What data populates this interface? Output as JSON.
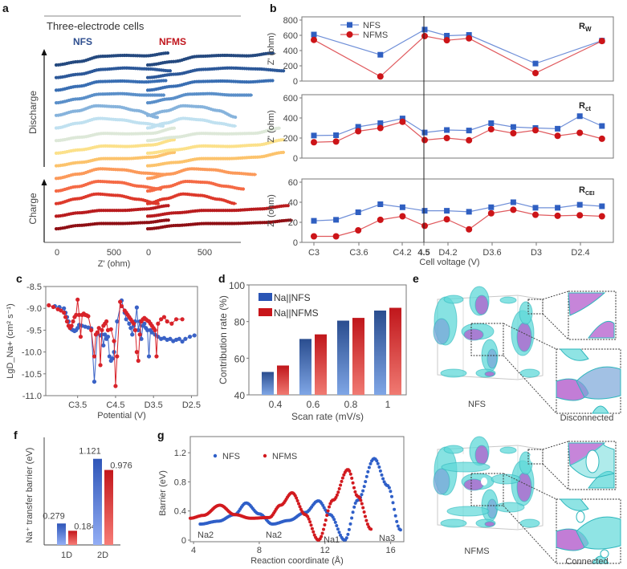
{
  "panels": {
    "a": {
      "letter": "a",
      "title": "Three-electrode cells",
      "series_labels": [
        "NFS",
        "NFMS"
      ],
      "series_colors": [
        "#2e4e8f",
        "#c0151c"
      ],
      "side_labels": [
        "Discharge",
        "Charge"
      ],
      "x_ticks": [
        "0",
        "500",
        "0",
        "500"
      ],
      "xlabel": "Z' (ohm)",
      "curve_colors": [
        "#24497f",
        "#2d5899",
        "#3a6fb3",
        "#5b8fc9",
        "#86b3dc",
        "#bfe0f0",
        "#dde8d8",
        "#fbe08a",
        "#fcc36c",
        "#fb9a5a",
        "#f46a45",
        "#dd3a2c",
        "#b81c1f",
        "#8f0f14"
      ]
    },
    "b": {
      "letter": "b",
      "legend": [
        "NFS",
        "NFMS"
      ],
      "colors": {
        "NFS": "#2f5fc1",
        "NFMS": "#cc1418"
      },
      "ylabel": "Z' (ohm)",
      "xlabel": "Cell voltage  (V)",
      "x_ticks": [
        "C3",
        "C3.6",
        "C4.2",
        "4.5",
        "D4.2",
        "D3.6",
        "D3",
        "D2.4"
      ],
      "highlight_tick": "4.5",
      "highlight_color": "#e8141a"
    },
    "c": {
      "letter": "c"
    },
    "d": {
      "letter": "d"
    },
    "e": {
      "letter": "e",
      "structures": [
        {
          "name": "NFS",
          "caption": "Disconnected"
        },
        {
          "name": "NFMS",
          "caption": "Connected"
        }
      ]
    },
    "f": {
      "letter": "f"
    },
    "g": {
      "letter": "g"
    }
  },
  "chart_data": [
    {
      "id": "b-rw",
      "type": "line",
      "title": "R_W",
      "ylabel": "Z' (ohm)",
      "ylim": [
        0,
        800
      ],
      "yticks": [
        "0",
        "200",
        "400",
        "600",
        "800"
      ],
      "x_index": [
        0,
        3,
        5,
        6,
        7,
        10,
        13
      ],
      "series": [
        {
          "name": "NFS",
          "values": [
            610,
            345,
            675,
            595,
            605,
            230,
            530
          ]
        },
        {
          "name": "NFMS",
          "values": [
            540,
            60,
            590,
            535,
            560,
            105,
            525
          ]
        }
      ]
    },
    {
      "id": "b-rct",
      "type": "line",
      "title": "R_ct",
      "ylabel": "Z' (ohm)",
      "ylim": [
        0,
        600
      ],
      "yticks": [
        "0",
        "200",
        "400",
        "600"
      ],
      "x_index": [
        0,
        1,
        2,
        3,
        4,
        5,
        6,
        7,
        8,
        9,
        10,
        11,
        12,
        13
      ],
      "series": [
        {
          "name": "NFS",
          "values": [
            225,
            228,
            312,
            348,
            395,
            255,
            280,
            275,
            348,
            310,
            300,
            293,
            418,
            320
          ]
        },
        {
          "name": "NFMS",
          "values": [
            158,
            165,
            268,
            300,
            362,
            180,
            200,
            178,
            288,
            248,
            278,
            222,
            252,
            193
          ]
        }
      ]
    },
    {
      "id": "b-rcei",
      "type": "line",
      "title": "R_CEI",
      "ylabel": "Z' (ohm)",
      "xlabel": "Cell voltage  (V)",
      "ylim": [
        0,
        60
      ],
      "yticks": [
        "0",
        "20",
        "40",
        "60"
      ],
      "categories": [
        "C3",
        "C3.6",
        "C4.2",
        "4.5",
        "D4.2",
        "D3.6",
        "D3",
        "D2.4"
      ],
      "x_index": [
        0,
        1,
        2,
        3,
        4,
        5,
        6,
        7,
        8,
        9,
        10,
        11,
        12,
        13
      ],
      "series": [
        {
          "name": "NFS",
          "values": [
            21.5,
            22.5,
            30,
            38,
            35,
            31.5,
            31.5,
            30.5,
            35,
            40,
            34.5,
            34.5,
            37.5,
            36
          ]
        },
        {
          "name": "NFMS",
          "values": [
            6,
            6,
            12,
            22.5,
            26,
            16.5,
            23,
            13,
            29,
            32.5,
            27.5,
            26.5,
            27,
            26
          ]
        }
      ]
    },
    {
      "id": "c",
      "type": "line",
      "ylabel": "LgD_Na+ (cm² s⁻¹)",
      "xlabel": "Potential  (V)",
      "ylim": [
        -11.0,
        -8.5
      ],
      "yticks": [
        "-8.5",
        "-9.0",
        "-9.5",
        "-10.0",
        "-10.5",
        "-11.0"
      ],
      "xticks": [
        "C3.5",
        "C4.5",
        "D3.5",
        "D2.5"
      ],
      "x_range": [
        0,
        100
      ],
      "xtick_pos": [
        21,
        46,
        71,
        96
      ],
      "series": [
        {
          "name": "NFS",
          "x": [
            6,
            9,
            12,
            13,
            14,
            15,
            16,
            17,
            18,
            19,
            20,
            21,
            22,
            24,
            26,
            28,
            30,
            32,
            34,
            36,
            37,
            38,
            39,
            40,
            41,
            42,
            43,
            44,
            45,
            47,
            50,
            52,
            53,
            55,
            56,
            57,
            58,
            59,
            60,
            61,
            62,
            63,
            64,
            65,
            66,
            67,
            68,
            69,
            70,
            72,
            74,
            76,
            78,
            80,
            82,
            84,
            86,
            88,
            90,
            92,
            95,
            98
          ],
          "y": [
            -8.95,
            -8.97,
            -9.0,
            -9.1,
            -9.2,
            -9.3,
            -9.45,
            -9.48,
            -9.5,
            -9.52,
            -9.5,
            -9.45,
            -9.38,
            -9.4,
            -9.42,
            -9.44,
            -9.46,
            -10.68,
            -9.58,
            -9.62,
            -9.6,
            -9.85,
            -9.6,
            -9.7,
            -9.65,
            -10.1,
            -10.2,
            -10.15,
            -10.0,
            -9.3,
            -8.82,
            -9.1,
            -9.25,
            -9.35,
            -9.45,
            -9.6,
            -9.4,
            -9.3,
            -8.98,
            -9.5,
            -9.3,
            -9.7,
            -9.4,
            -9.35,
            -9.45,
            -9.5,
            -10.1,
            -9.5,
            -9.55,
            -9.6,
            -9.65,
            -9.7,
            -9.68,
            -9.72,
            -9.7,
            -9.75,
            -9.72,
            -9.7,
            -9.76,
            -9.7,
            -9.65,
            -9.62
          ]
        },
        {
          "name": "NFMS",
          "x": [
            2,
            5,
            8,
            10,
            12,
            13,
            14,
            15,
            16,
            17,
            18,
            19,
            20,
            21,
            22,
            23,
            24,
            25,
            26,
            27,
            28,
            30,
            32,
            33,
            34,
            35,
            36,
            37,
            38,
            39,
            40,
            41,
            43,
            45,
            46,
            47,
            49,
            50,
            52,
            53,
            54,
            55,
            56,
            57,
            58,
            59,
            60,
            61,
            62,
            63,
            64,
            65,
            66,
            67,
            68,
            69,
            70,
            71,
            72,
            73,
            74,
            76,
            78,
            80,
            83,
            86,
            90
          ],
          "y": [
            -8.93,
            -8.97,
            -9.02,
            -9.05,
            -9.1,
            -9.2,
            -9.3,
            -9.4,
            -9.45,
            -9.4,
            -9.3,
            -9.2,
            -9.15,
            -8.8,
            -9.15,
            -9.65,
            -9.15,
            -9.12,
            -9.15,
            -9.16,
            -9.18,
            -9.5,
            -10.1,
            -9.6,
            -9.55,
            -9.45,
            -10.3,
            -9.5,
            -9.4,
            -9.35,
            -9.3,
            -9.5,
            -9.48,
            -9.75,
            -10.78,
            -10.1,
            -8.85,
            -8.95,
            -9.05,
            -9.1,
            -9.15,
            -9.2,
            -9.25,
            -9.3,
            -9.35,
            -9.5,
            -10.0,
            -10.2,
            -9.6,
            -9.3,
            -9.25,
            -9.22,
            -9.25,
            -9.28,
            -9.3,
            -9.35,
            -9.4,
            -9.45,
            -9.5,
            -10.1,
            -9.35,
            -9.25,
            -9.2,
            -9.3,
            -9.35,
            -9.25,
            -9.25
          ]
        }
      ]
    },
    {
      "id": "d",
      "type": "bar",
      "ylabel": "Contribution rate (%)",
      "xlabel": "Scan rate (mV/s)",
      "ylim": [
        40,
        100
      ],
      "yticks": [
        "40",
        "60",
        "80",
        "100"
      ],
      "categories": [
        "0.4",
        "0.6",
        "0.8",
        "1"
      ],
      "legend_position": "top-left",
      "series": [
        {
          "name": "Na||NFS",
          "values": [
            52.5,
            70.5,
            80.5,
            86
          ]
        },
        {
          "name": "Na||NFMS",
          "values": [
            56,
            73,
            82,
            87.5
          ]
        }
      ]
    },
    {
      "id": "f",
      "type": "bar",
      "ylabel": "Na⁺ transfer barrier (eV)",
      "categories": [
        "1D",
        "2D"
      ],
      "ylim": [
        0,
        1.4
      ],
      "series": [
        {
          "name": "NFS",
          "values": [
            0.279,
            1.121
          ],
          "labels": [
            "0.279",
            "1.121"
          ]
        },
        {
          "name": "NFMS",
          "values": [
            0.184,
            0.976
          ],
          "labels": [
            "0.184",
            "0.976"
          ]
        }
      ]
    },
    {
      "id": "g",
      "type": "scatter",
      "ylabel": "Barrier (eV)",
      "xlabel": "Reaction coordinate (Å)",
      "xlim": [
        3.8,
        16.8
      ],
      "ylim": [
        0,
        1.4
      ],
      "xticks": [
        "4",
        "8",
        "12",
        "16"
      ],
      "xtick_values": [
        4,
        8,
        12,
        16
      ],
      "yticks": [
        "0",
        "0.4",
        "0.8",
        "1.2"
      ],
      "ytick_values": [
        0,
        0.4,
        0.8,
        1.2
      ],
      "legend_position": "top-left",
      "annotations": [
        {
          "text": "Na2",
          "x": 4.0,
          "y": 0.08
        },
        {
          "text": "Na2",
          "x": 8.2,
          "y": 0.08
        },
        {
          "text": "Na1",
          "x": 12.0,
          "y": 0.02
        },
        {
          "text": "Na3",
          "x": 15.4,
          "y": 0.05
        }
      ],
      "series": [
        {
          "name": "NFS",
          "anchors_x": [
            4.4,
            5.5,
            6.5,
            7.2,
            8.0,
            8.8,
            9.8,
            10.8,
            11.6,
            12.3,
            13.2,
            14.0,
            15.0,
            15.8,
            16.6
          ],
          "anchors_y": [
            0.22,
            0.26,
            0.35,
            0.51,
            0.36,
            0.22,
            0.27,
            0.38,
            0.54,
            0.35,
            0.0,
            0.55,
            1.12,
            0.75,
            0.14
          ]
        },
        {
          "name": "NFMS",
          "anchors_x": [
            3.8,
            4.6,
            5.6,
            6.5,
            7.5,
            8.6,
            9.3,
            10.0,
            10.8,
            11.6,
            12.5,
            13.4,
            14.0,
            14.8
          ],
          "anchors_y": [
            0.3,
            0.34,
            0.48,
            0.35,
            0.3,
            0.31,
            0.48,
            0.65,
            0.35,
            0.0,
            0.55,
            0.97,
            0.6,
            0.15
          ]
        }
      ]
    }
  ]
}
